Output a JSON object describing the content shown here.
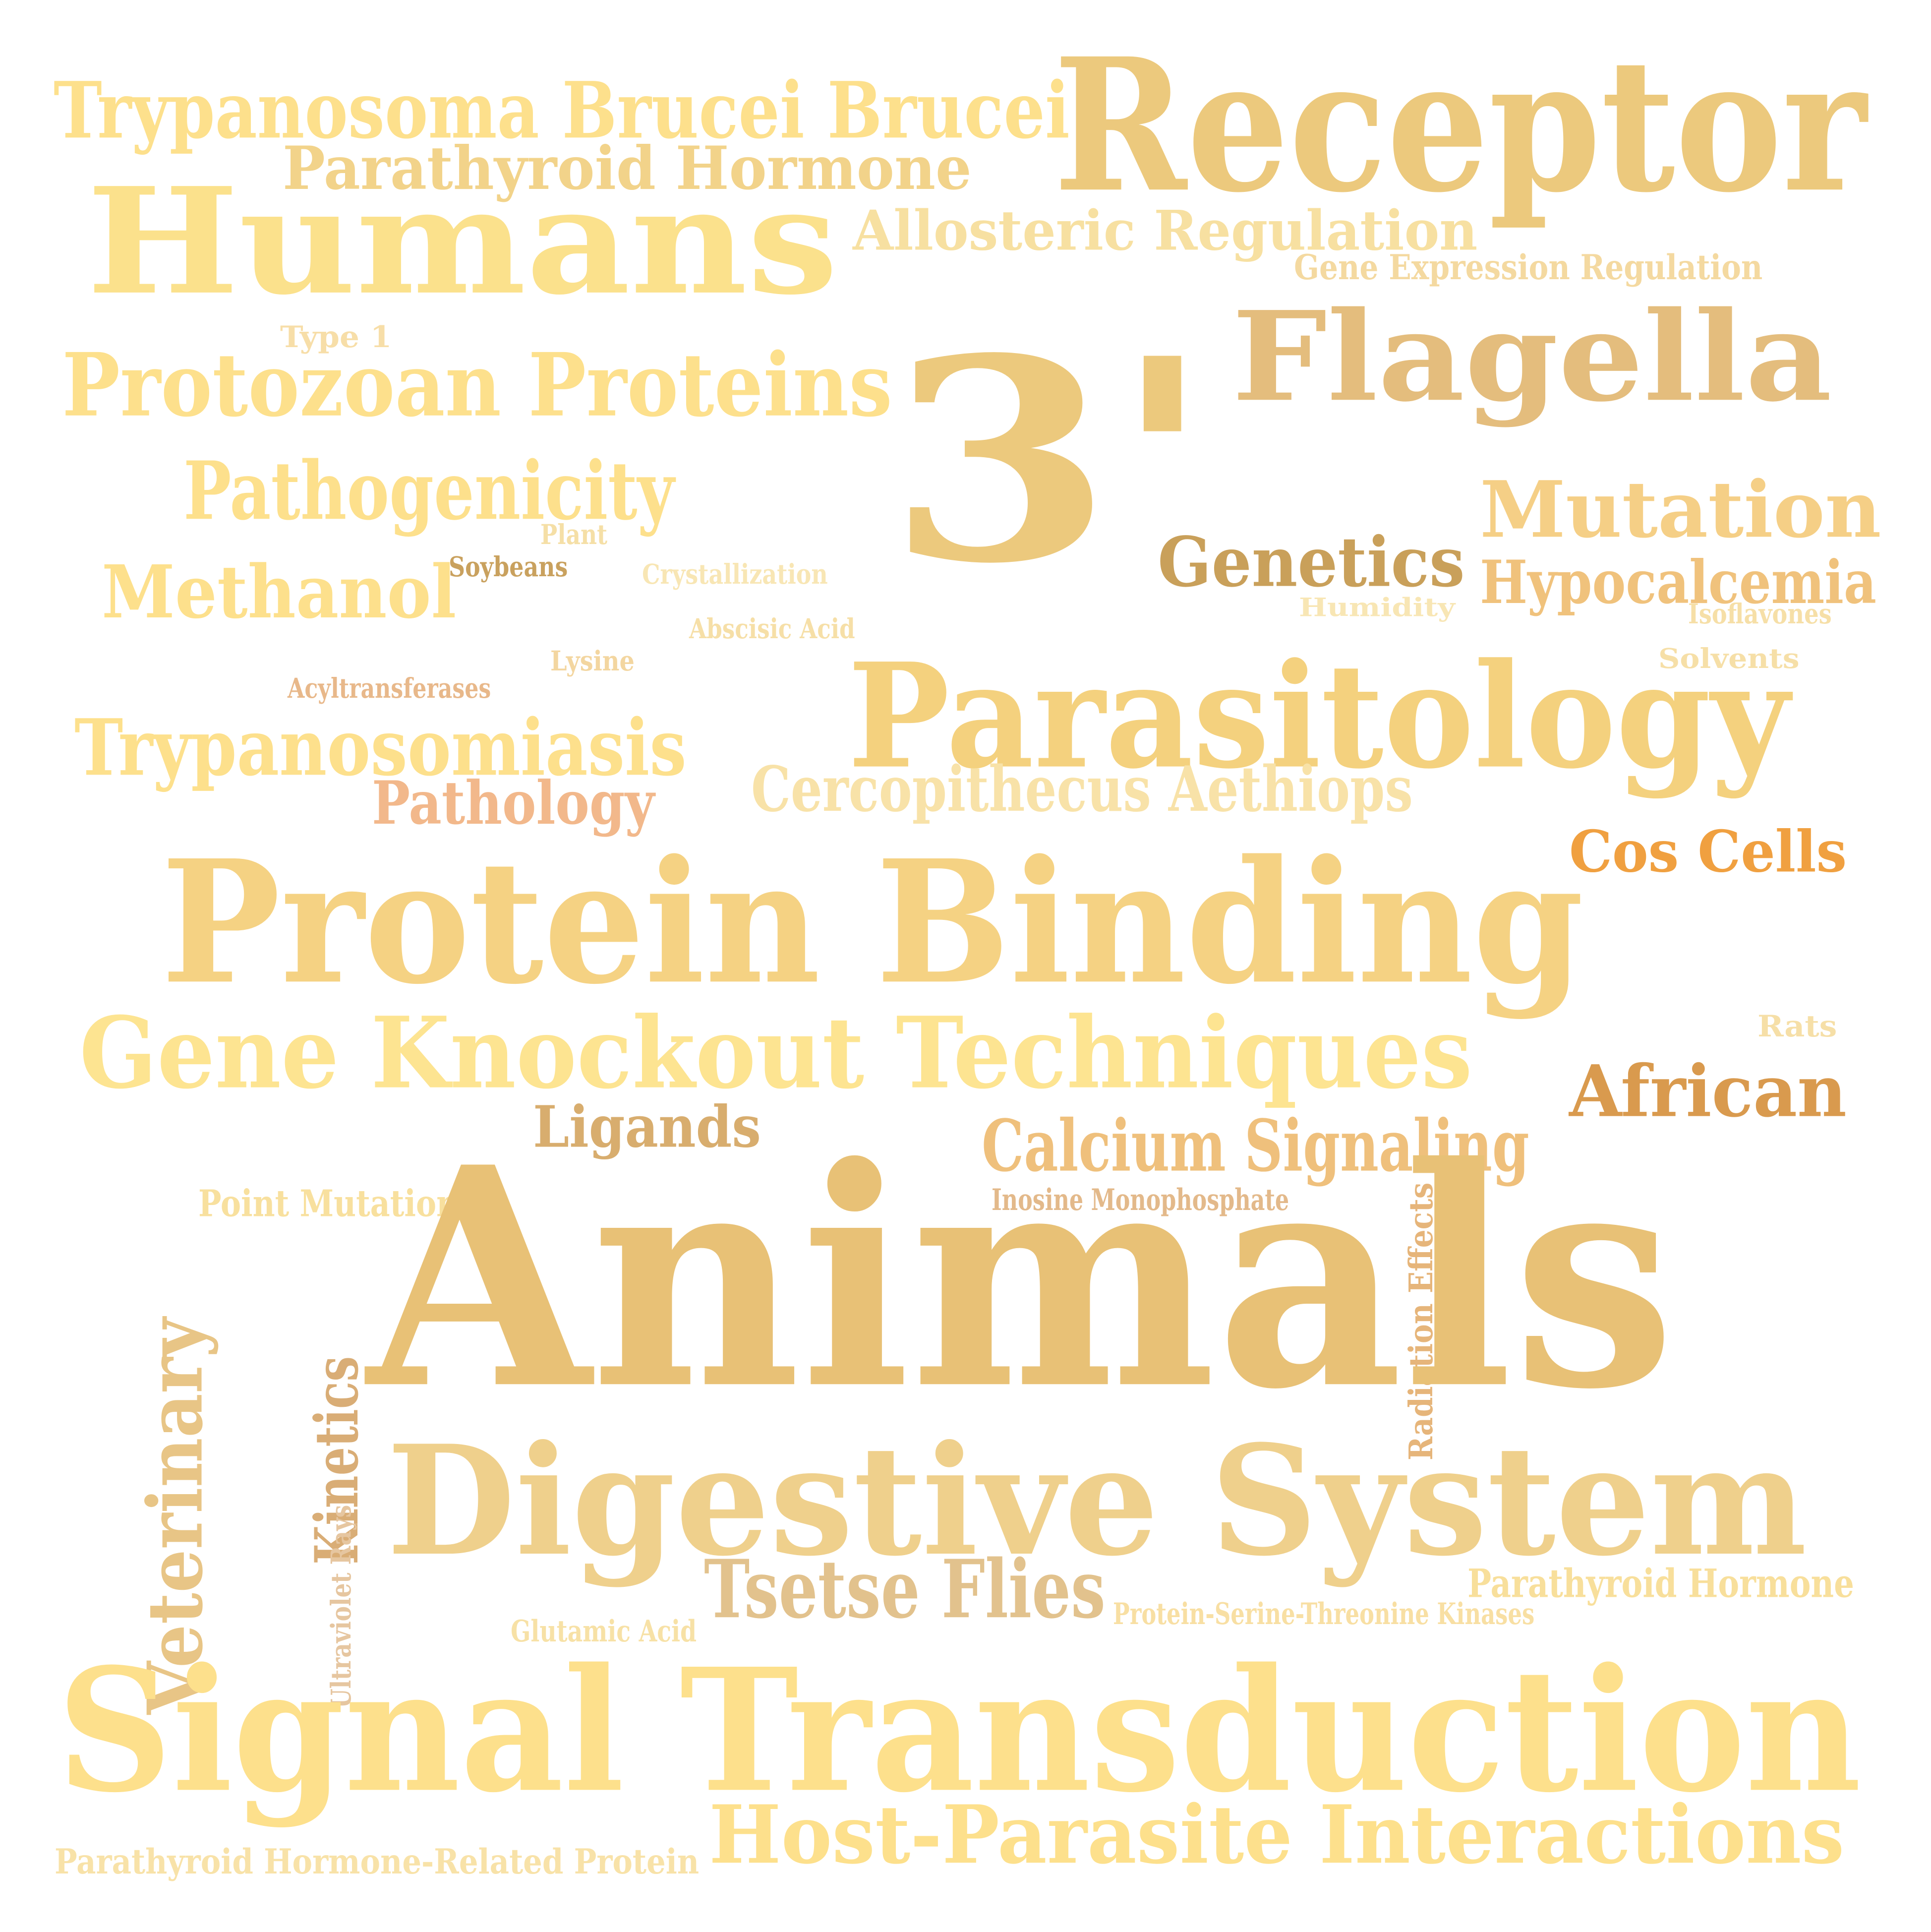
{
  "cloud": {
    "words": [
      {
        "text": "Receptor",
        "color": "#ecc97d"
      },
      {
        "text": "Trypanosoma Brucei Brucei",
        "color": "#fde08c"
      },
      {
        "text": "Parathyroid Hormone",
        "color": "#f2d38a"
      },
      {
        "text": "Humans",
        "color": "#fbe18c"
      },
      {
        "text": "Allosteric Regulation",
        "color": "#f7e0a1"
      },
      {
        "text": "Gene Expression Regulation",
        "color": "#f4d9a0"
      },
      {
        "text": "3'",
        "color": "#ecc97d"
      },
      {
        "text": "Flagella",
        "color": "#e4bd7d"
      },
      {
        "text": "Type 1",
        "color": "#f7dea8"
      },
      {
        "text": "Protozoan Proteins",
        "color": "#fde08c"
      },
      {
        "text": "Pathogenicity",
        "color": "#fde08c"
      },
      {
        "text": "Mutation",
        "color": "#f5cf86"
      },
      {
        "text": "Plant",
        "color": "#f5dfa6"
      },
      {
        "text": "Genetics",
        "color": "#c9a05a"
      },
      {
        "text": "Hypocalcemia",
        "color": "#f0c27c"
      },
      {
        "text": "Methanol",
        "color": "#fde08c"
      },
      {
        "text": "Soybeans",
        "color": "#c9a15e"
      },
      {
        "text": "Crystallization",
        "color": "#f8e6b4"
      },
      {
        "text": "Humidity",
        "color": "#f8e6b4"
      },
      {
        "text": "Isoflavones",
        "color": "#f6dfa7"
      },
      {
        "text": "Abscisic Acid",
        "color": "#f6dfa7"
      },
      {
        "text": "Lysine",
        "color": "#f3d6a0"
      },
      {
        "text": "Solvents",
        "color": "#f6dfa7"
      },
      {
        "text": "Acyltransferases",
        "color": "#e8b88a"
      },
      {
        "text": "Parasitology",
        "color": "#f4d17e"
      },
      {
        "text": "Trypanosomiasis",
        "color": "#fde08c"
      },
      {
        "text": "Pathology",
        "color": "#f2b88b"
      },
      {
        "text": "Cercopithecus Aethiops",
        "color": "#f8e2a8"
      },
      {
        "text": "Cos Cells",
        "color": "#f0a040"
      },
      {
        "text": "Protein Binding",
        "color": "#f5d283"
      },
      {
        "text": "Gene Knockout Techniques",
        "color": "#fde491"
      },
      {
        "text": "Rats",
        "color": "#f6dfa7"
      },
      {
        "text": "African",
        "color": "#d99a4e"
      },
      {
        "text": "Ligands",
        "color": "#d8ad6e"
      },
      {
        "text": "Calcium Signaling",
        "color": "#efc07c"
      },
      {
        "text": "Point Mutation",
        "color": "#f8e09e"
      },
      {
        "text": "Inosine Monophosphate",
        "color": "#e3b98a"
      },
      {
        "text": "Radiation Effects",
        "color": "#e6b57a"
      },
      {
        "text": "Veterinary",
        "color": "#e8c586"
      },
      {
        "text": "Animals",
        "color": "#e8c176"
      },
      {
        "text": "Kinetics",
        "color": "#d9ad76"
      },
      {
        "text": "Digestive System",
        "color": "#efd08c"
      },
      {
        "text": "Ultraviolet Rays",
        "color": "#e6c6a0"
      },
      {
        "text": "Tsetse Flies",
        "color": "#e2c28d"
      },
      {
        "text": "Parathyroid Hormone",
        "color": "#f8df9b"
      },
      {
        "text": "Protein-Serine-Threonine Kinases",
        "color": "#f8dfa3"
      },
      {
        "text": "Glutamic Acid",
        "color": "#f7e1a6"
      },
      {
        "text": "Signal Transduction",
        "color": "#fde08c"
      },
      {
        "text": "Host-Parasite Interactions",
        "color": "#fde08c"
      },
      {
        "text": "Parathyroid Hormone-Related Protein",
        "color": "#f8e2a8"
      }
    ]
  }
}
